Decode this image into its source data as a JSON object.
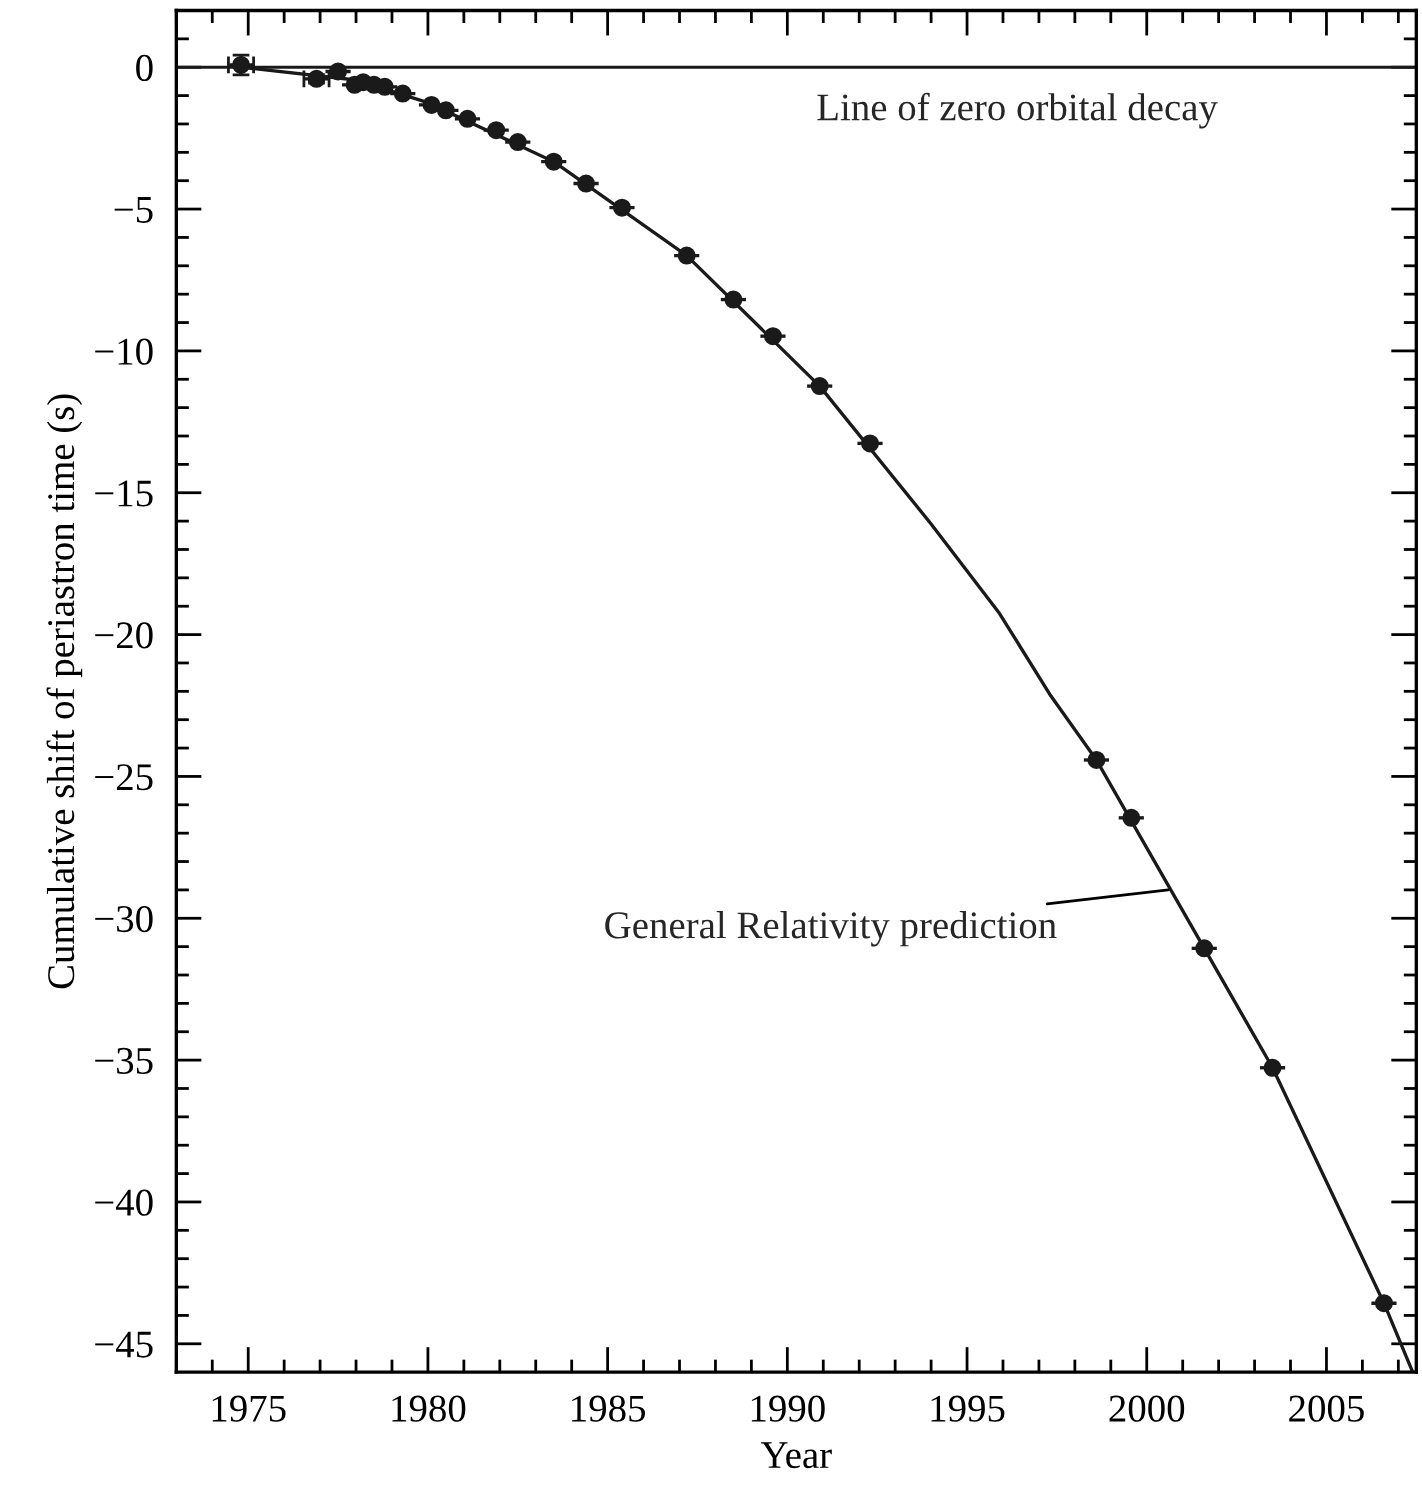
{
  "chart_data": {
    "type": "scatter",
    "xlabel": "Year",
    "ylabel": "Cumulative shift of periastron time (s)",
    "xlim": [
      1973,
      2007.5
    ],
    "ylim": [
      -46,
      2
    ],
    "xticks": [
      1975,
      1980,
      1985,
      1990,
      1995,
      2000,
      2005,
      {
        "value": 1973,
        "label": null
      },
      {
        "value": 1974,
        "label": null
      },
      {
        "value": 1976,
        "label": null
      },
      {
        "value": 1977,
        "label": null
      },
      {
        "value": 1978,
        "label": null
      },
      {
        "value": 1979,
        "label": null
      },
      {
        "value": 1981,
        "label": null
      },
      {
        "value": 1982,
        "label": null
      },
      {
        "value": 1983,
        "label": null
      },
      {
        "value": 1984,
        "label": null
      },
      {
        "value": 1986,
        "label": null
      },
      {
        "value": 1987,
        "label": null
      },
      {
        "value": 1988,
        "label": null
      },
      {
        "value": 1989,
        "label": null
      },
      {
        "value": 1991,
        "label": null
      },
      {
        "value": 1992,
        "label": null
      },
      {
        "value": 1993,
        "label": null
      },
      {
        "value": 1994,
        "label": null
      },
      {
        "value": 1996,
        "label": null
      },
      {
        "value": 1997,
        "label": null
      },
      {
        "value": 1998,
        "label": null
      },
      {
        "value": 1999,
        "label": null
      },
      {
        "value": 2001,
        "label": null
      },
      {
        "value": 2002,
        "label": null
      },
      {
        "value": 2003,
        "label": null
      },
      {
        "value": 2004,
        "label": null
      },
      {
        "value": 2006,
        "label": null
      },
      {
        "value": 2007,
        "label": null
      }
    ],
    "yticks": [
      0,
      {
        "value": -5,
        "label": "−5"
      },
      {
        "value": -10,
        "label": "−10"
      },
      {
        "value": -15,
        "label": "−15"
      },
      {
        "value": -20,
        "label": "−20"
      },
      {
        "value": -25,
        "label": "−25"
      },
      {
        "value": -30,
        "label": "−30"
      },
      {
        "value": -35,
        "label": "−35"
      },
      {
        "value": -40,
        "label": "−40"
      },
      {
        "value": -45,
        "label": "−45"
      },
      {
        "value": 1,
        "label": null
      },
      {
        "value": -1,
        "label": null
      },
      {
        "value": -2,
        "label": null
      },
      {
        "value": -3,
        "label": null
      },
      {
        "value": -4,
        "label": null
      },
      {
        "value": -6,
        "label": null
      },
      {
        "value": -7,
        "label": null
      },
      {
        "value": -8,
        "label": null
      },
      {
        "value": -9,
        "label": null
      },
      {
        "value": -11,
        "label": null
      },
      {
        "value": -12,
        "label": null
      },
      {
        "value": -13,
        "label": null
      },
      {
        "value": -14,
        "label": null
      },
      {
        "value": -16,
        "label": null
      },
      {
        "value": -17,
        "label": null
      },
      {
        "value": -18,
        "label": null
      },
      {
        "value": -19,
        "label": null
      },
      {
        "value": -21,
        "label": null
      },
      {
        "value": -22,
        "label": null
      },
      {
        "value": -23,
        "label": null
      },
      {
        "value": -24,
        "label": null
      },
      {
        "value": -26,
        "label": null
      },
      {
        "value": -27,
        "label": null
      },
      {
        "value": -28,
        "label": null
      },
      {
        "value": -29,
        "label": null
      },
      {
        "value": -31,
        "label": null
      },
      {
        "value": -32,
        "label": null
      },
      {
        "value": -33,
        "label": null
      },
      {
        "value": -34,
        "label": null
      },
      {
        "value": -36,
        "label": null
      },
      {
        "value": -37,
        "label": null
      },
      {
        "value": -38,
        "label": null
      },
      {
        "value": -39,
        "label": null
      },
      {
        "value": -41,
        "label": null
      },
      {
        "value": -42,
        "label": null
      },
      {
        "value": -43,
        "label": null
      },
      {
        "value": -44,
        "label": null
      }
    ],
    "grid": false,
    "legend": false,
    "marker": "circle",
    "series": [
      {
        "color": "#1a1a1a",
        "x": [
          1974.8,
          1976.9,
          1977.5,
          1977.96,
          1978.2,
          1978.5,
          1978.8,
          1979.3,
          1980.1,
          1980.5,
          1981.1,
          1981.9,
          1982.5,
          1983.5,
          1984.4,
          1985.4,
          1987.2,
          1988.5,
          1989.6,
          1990.9,
          1992.3,
          1998.6,
          1999.57,
          2001.6,
          2003.5,
          2006.6
        ],
        "values": [
          0.08,
          -0.41,
          -0.15,
          -0.62,
          -0.53,
          -0.62,
          -0.69,
          -0.93,
          -1.33,
          -1.52,
          -1.82,
          -2.22,
          -2.64,
          -3.33,
          -4.1,
          -4.95,
          -6.64,
          -8.19,
          -9.48,
          -11.24,
          -13.26,
          -24.42,
          -26.46,
          -31.06,
          -35.27,
          -43.57
        ],
        "errors": [
          0.35,
          0.15,
          null,
          null,
          null,
          null,
          null,
          null,
          null,
          null,
          null,
          null,
          null,
          null,
          null,
          null,
          null,
          null,
          null,
          null,
          null,
          null,
          null,
          null,
          null,
          null
        ],
        "xerrors": [
          0.35,
          0.35,
          0.35,
          0.35,
          0.35,
          0.35,
          0.35,
          0.35,
          0.35,
          0.35,
          0.35,
          0.35,
          0.35,
          0.35,
          0.35,
          0.35,
          0.35,
          0.35,
          0.35,
          0.35,
          0.35,
          0.35,
          0.35,
          0.35,
          0.35,
          0.35
        ]
      },
      {
        "type": "line",
        "color": "#1a1a1a",
        "marker": "none",
        "line_style": "solid",
        "x": [
          1974.8,
          1978,
          1980,
          1983.5,
          1987.2,
          1990.9,
          1994,
          1995.9,
          1997.3,
          1998.6,
          2001.6,
          2003.5,
          2006.6,
          2007.4
        ],
        "values": [
          0,
          -0.45,
          -1.25,
          -3.33,
          -6.64,
          -11.24,
          -16.1,
          -19.25,
          -22.1,
          -24.42,
          -31.06,
          -35.27,
          -43.57,
          -46
        ]
      }
    ],
    "ref_lines": [
      {
        "axis": "y",
        "value": 0,
        "label": "Line of zero orbital decay",
        "color": "#1a1a1a",
        "line_style": "solid"
      }
    ],
    "annotations": [
      {
        "text": "General Relativity prediction",
        "x": 2000.6,
        "y": -29.0
      }
    ]
  }
}
